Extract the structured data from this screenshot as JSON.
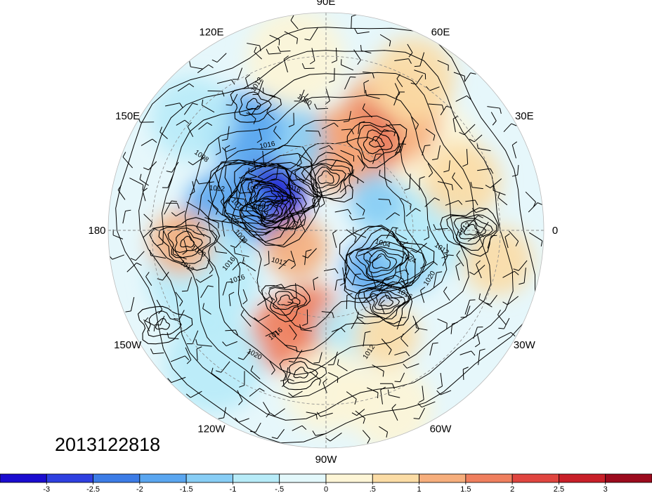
{
  "map": {
    "projection": "north-polar-stereographic",
    "longitude_labels": [
      {
        "text": "90E",
        "lon": 90
      },
      {
        "text": "60E",
        "lon": 60
      },
      {
        "text": "30E",
        "lon": 30
      },
      {
        "text": "0",
        "lon": 0
      },
      {
        "text": "30W",
        "lon": -30
      },
      {
        "text": "60W",
        "lon": -60
      },
      {
        "text": "90W",
        "lon": -90
      },
      {
        "text": "120W",
        "lon": -120
      },
      {
        "text": "150W",
        "lon": -150
      },
      {
        "text": "180",
        "lon": 180
      },
      {
        "text": "150E",
        "lon": 150
      },
      {
        "text": "120E",
        "lon": 120
      }
    ],
    "contour_labels": [
      "1012",
      "1020",
      "1016",
      "1008",
      "1012",
      "1016",
      "1004",
      "988",
      "1016",
      "1020",
      "1008",
      "1016",
      "1012",
      "1016",
      "1012",
      "1020",
      "1016",
      "1024",
      "1020",
      "1012",
      "1016",
      "1012",
      "1004",
      "1012"
    ],
    "anomaly_centers": [
      {
        "name": "cold-east-siberia",
        "lon": 150,
        "lat": 68,
        "value": -3
      },
      {
        "name": "warm-north-asia",
        "lon": 70,
        "lat": 58,
        "value": 2.5
      },
      {
        "name": "warm-north-america",
        "lon": -110,
        "lat": 52,
        "value": 2
      },
      {
        "name": "cold-greenland",
        "lon": -40,
        "lat": 68,
        "value": -1.5
      },
      {
        "name": "warm-europe",
        "lon": 20,
        "lat": 40,
        "value": 1
      },
      {
        "name": "warm-arctic-alaska",
        "lon": -150,
        "lat": 78,
        "value": 1.5
      }
    ]
  },
  "date_label": "2013122818",
  "colorbar": {
    "colors": [
      "#1a0ccf",
      "#2e3fe0",
      "#3c7ce6",
      "#5aa6f0",
      "#87cdf5",
      "#b7ebf8",
      "#e3f8fb",
      "#fdf5d6",
      "#fbdca5",
      "#f6ae7c",
      "#ef7f5e",
      "#e0453f",
      "#c81f28",
      "#9b0a1d"
    ],
    "labels": [
      "-3",
      "-2.5",
      "-2",
      "-1.5",
      "-1",
      "-.5",
      "0",
      ".5",
      "1",
      "1.5",
      "2",
      "2.5",
      "3"
    ]
  }
}
